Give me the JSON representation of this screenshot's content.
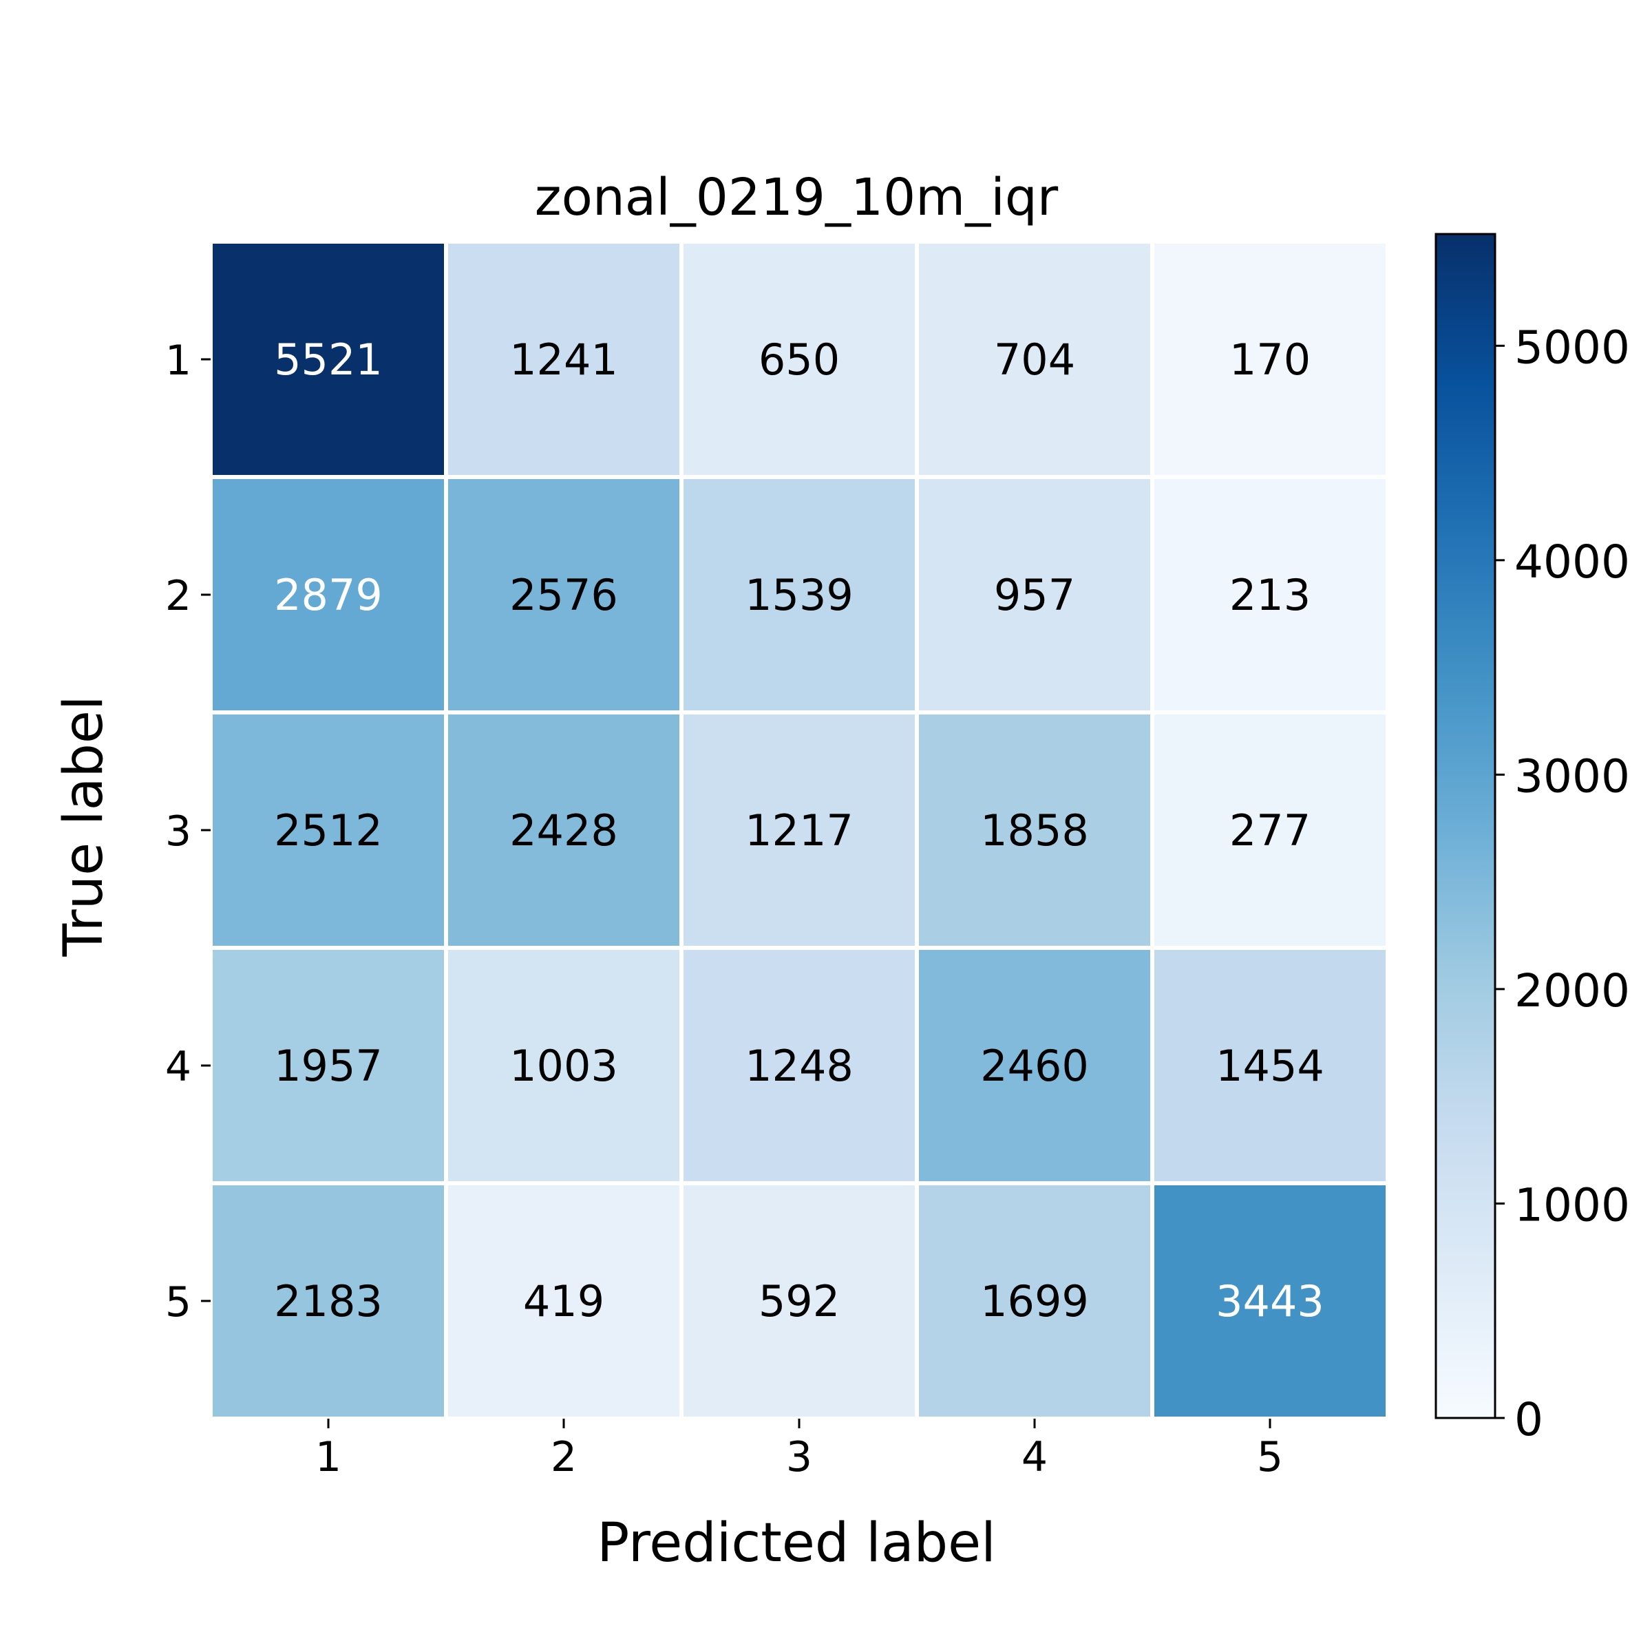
{
  "chart_data": {
    "type": "heatmap",
    "title": "zonal_0219_10m_iqr",
    "xlabel": "Predicted label",
    "ylabel": "True label",
    "x_categories": [
      "1",
      "2",
      "3",
      "4",
      "5"
    ],
    "y_categories": [
      "1",
      "2",
      "3",
      "4",
      "5"
    ],
    "values": [
      [
        5521,
        1241,
        650,
        704,
        170
      ],
      [
        2879,
        2576,
        1539,
        957,
        213
      ],
      [
        2512,
        2428,
        1217,
        1858,
        277
      ],
      [
        1957,
        1003,
        1248,
        2460,
        1454
      ],
      [
        2183,
        419,
        592,
        1699,
        3443
      ]
    ],
    "colormap": "Blues",
    "colorbar": {
      "vmin": 0,
      "vmax": 5521,
      "ticks": [
        0,
        1000,
        2000,
        3000,
        4000,
        5000
      ],
      "tick_labels": [
        "0",
        "1000",
        "2000",
        "3000",
        "4000",
        "5000"
      ]
    },
    "colors": {
      "low": "#f7fbff",
      "high": "#08306b",
      "text_dark": "#000000",
      "text_light": "#ffffff",
      "cell_border": "#ffffff"
    }
  }
}
